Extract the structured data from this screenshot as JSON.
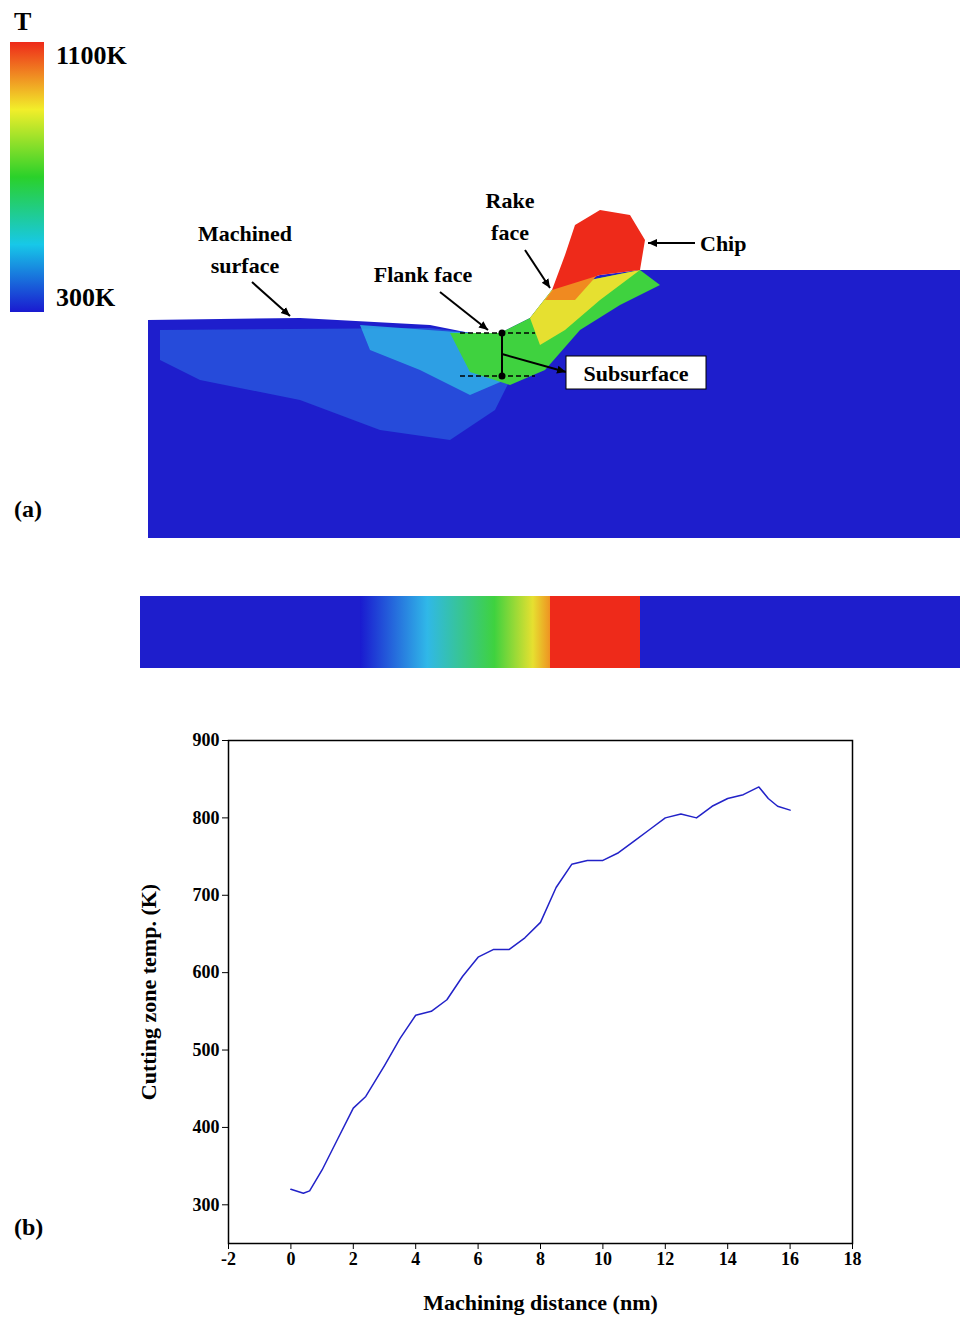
{
  "panel_a": {
    "panel_label": "(a)",
    "colorbar": {
      "title": "T",
      "range": [
        300,
        1100
      ],
      "ticks": [
        {
          "value": 1100,
          "label": "1100K"
        },
        {
          "value": 300,
          "label": "300K"
        }
      ]
    },
    "annotations": [
      "Machined surface",
      "Rake face",
      "Flank face",
      "Chip",
      "Subsurface"
    ]
  },
  "chart_data": {
    "type": "line",
    "panel_label": "(b)",
    "x_label": "Machining distance (nm)",
    "y_label": "Cutting zone temp. (K)",
    "x": [
      0,
      0.4,
      0.6,
      1,
      1.5,
      2,
      2.4,
      3,
      3.5,
      4,
      4.5,
      5,
      5.5,
      6,
      6.5,
      7,
      7.5,
      8,
      8.5,
      9,
      9.5,
      10,
      10.5,
      11,
      11.5,
      12,
      12.5,
      13,
      13.5,
      14,
      14.5,
      15,
      15.3,
      15.6,
      16
    ],
    "series": [
      {
        "name": "Cutting zone temp.",
        "color": "#2222c8",
        "values": [
          320,
          315,
          318,
          345,
          385,
          425,
          440,
          480,
          515,
          545,
          550,
          565,
          595,
          620,
          630,
          630,
          645,
          665,
          710,
          740,
          745,
          745,
          755,
          770,
          785,
          800,
          805,
          800,
          815,
          825,
          830,
          840,
          825,
          815,
          810
        ]
      }
    ],
    "xlim": [
      -2,
      18
    ],
    "xticks": [
      -2,
      0,
      2,
      4,
      6,
      8,
      10,
      12,
      14,
      16,
      18
    ],
    "ylim": [
      250,
      900
    ],
    "yticks": [
      300,
      400,
      500,
      600,
      700,
      800,
      900
    ],
    "grid": false
  }
}
